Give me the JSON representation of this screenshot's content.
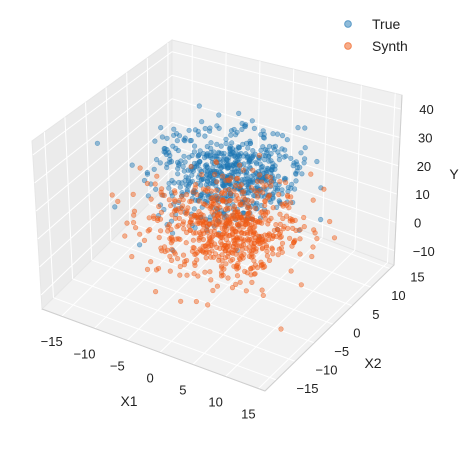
{
  "chart_data": {
    "type": "scatter",
    "projection": "3d",
    "title": "",
    "xlabel": "X1",
    "ylabel": "X2",
    "zlabel": "Y",
    "xlim": [
      -18,
      16
    ],
    "ylim": [
      -18,
      16
    ],
    "zlim": [
      -15,
      45
    ],
    "xticks": [
      -15,
      -10,
      -5,
      0,
      5,
      10,
      15
    ],
    "yticks": [
      -15,
      -10,
      -5,
      0,
      5,
      10,
      15
    ],
    "zticks": [
      -10,
      0,
      10,
      20,
      30,
      40
    ],
    "grid": true,
    "legend": "top-right",
    "series": [
      {
        "name": "True",
        "color": "#1f77b4",
        "distribution": {
          "count": 650,
          "x_mean": 0,
          "x_sd": 4.5,
          "y_mean": 0,
          "y_sd": 4.5,
          "z_mean": 25,
          "z_sd": 6
        }
      },
      {
        "name": "Synth",
        "color": "#f05a14",
        "distribution": {
          "count": 650,
          "x_mean": 0,
          "x_sd": 4.8,
          "y_mean": 0,
          "y_sd": 4.8,
          "z_mean": 5,
          "z_sd": 6
        }
      }
    ]
  }
}
